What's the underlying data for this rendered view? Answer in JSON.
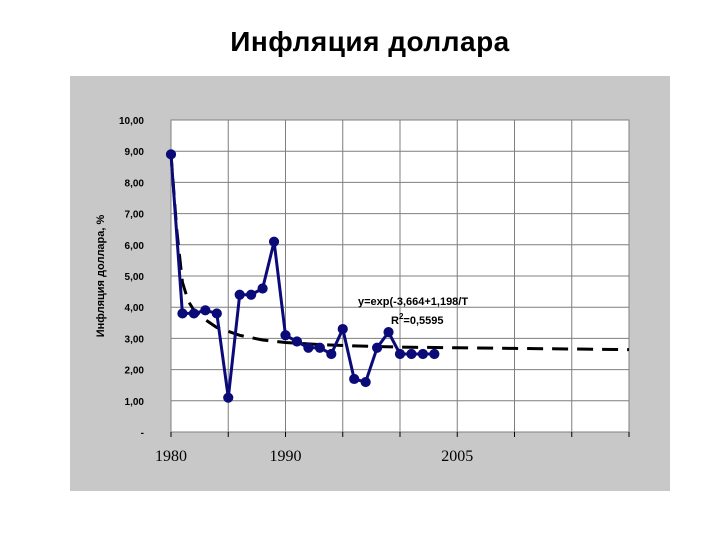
{
  "title": "Инфляция доллара",
  "colors": {
    "panel": "#c8c8c8",
    "plot_area": "#ffffff",
    "grid": "#7f7f7f",
    "series": "#0a0a78",
    "trend": "#000000"
  },
  "chart_data": {
    "type": "line",
    "ylabel": "Инфляция доллара, %",
    "xlabel": "",
    "ylim": [
      0,
      10
    ],
    "xlim": [
      1980,
      2020
    ],
    "grid": true,
    "y_ticks": [
      "-",
      "1,00",
      "2,00",
      "3,00",
      "4,00",
      "5,00",
      "6,00",
      "7,00",
      "8,00",
      "9,00",
      "10,00"
    ],
    "x_tick_labels": [
      {
        "x": 1980,
        "label": "1980"
      },
      {
        "x": 1990,
        "label": "1990"
      },
      {
        "x": 2005,
        "label": "2005"
      }
    ],
    "series": [
      {
        "kind": "data",
        "x": [
          1980,
          1981,
          1982,
          1983,
          1984,
          1985,
          1986,
          1987,
          1988,
          1989,
          1990,
          1991,
          1992,
          1993,
          1994,
          1995,
          1996,
          1997,
          1998,
          1999,
          2000,
          2001,
          2002,
          2003
        ],
        "y": [
          8.9,
          3.8,
          3.8,
          3.9,
          3.8,
          1.1,
          4.4,
          4.4,
          4.6,
          6.1,
          3.1,
          2.9,
          2.7,
          2.7,
          2.5,
          3.3,
          1.7,
          1.6,
          2.7,
          3.2,
          2.5,
          2.5,
          2.5,
          2.5
        ]
      },
      {
        "kind": "trend",
        "x": [
          1980,
          1980.5,
          1981,
          1981.5,
          1982,
          1983,
          1984,
          1986,
          1988,
          1990,
          1993,
          1996,
          2000,
          2005,
          2010,
          2015,
          2020
        ],
        "y": [
          8.9,
          6.5,
          4.8,
          4.2,
          3.9,
          3.6,
          3.35,
          3.1,
          2.95,
          2.87,
          2.8,
          2.76,
          2.72,
          2.7,
          2.68,
          2.66,
          2.64
        ]
      }
    ],
    "annotation": {
      "equation": "y=exp(-3,664+1,198/T",
      "r2_prefix": "R",
      "r2_sup": "2",
      "r2_value": "=0,5595"
    }
  }
}
